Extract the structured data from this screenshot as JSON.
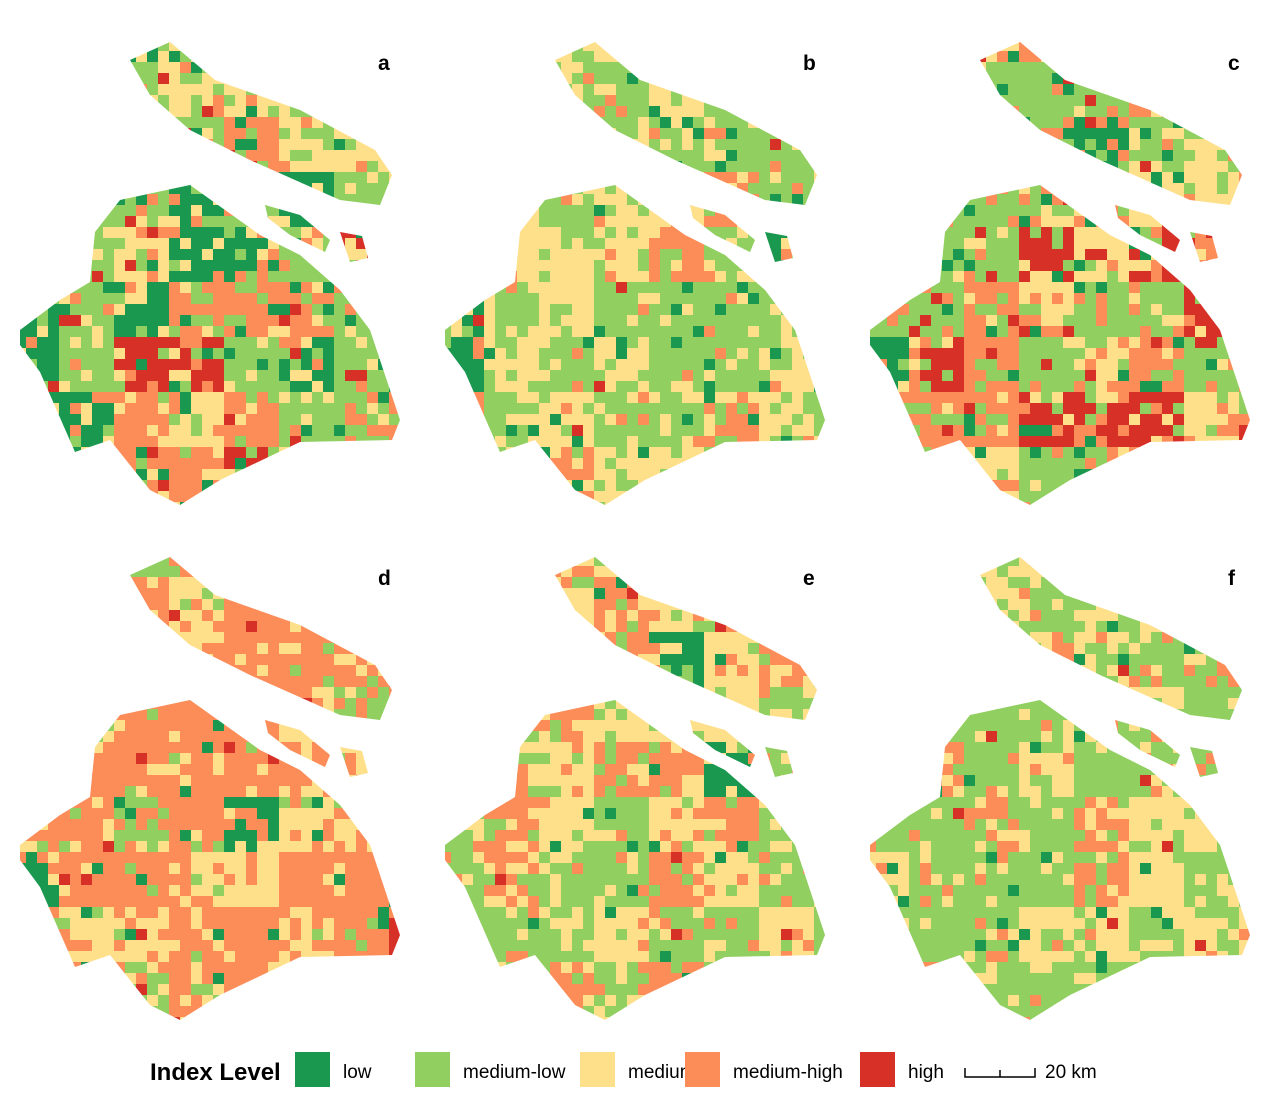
{
  "panels": [
    {
      "label": "a"
    },
    {
      "label": "b"
    },
    {
      "label": "c"
    },
    {
      "label": "d"
    },
    {
      "label": "e"
    },
    {
      "label": "f"
    }
  ],
  "legend": {
    "title": "Index Level",
    "items": [
      {
        "label": "low",
        "color": "#1a9850"
      },
      {
        "label": "medium-low",
        "color": "#91cf60"
      },
      {
        "label": "medium",
        "color": "#fee08b"
      },
      {
        "label": "medium-high",
        "color": "#fc8d59"
      },
      {
        "label": "high",
        "color": "#d73027"
      }
    ]
  },
  "scale_bar": {
    "label": "20 km"
  }
}
